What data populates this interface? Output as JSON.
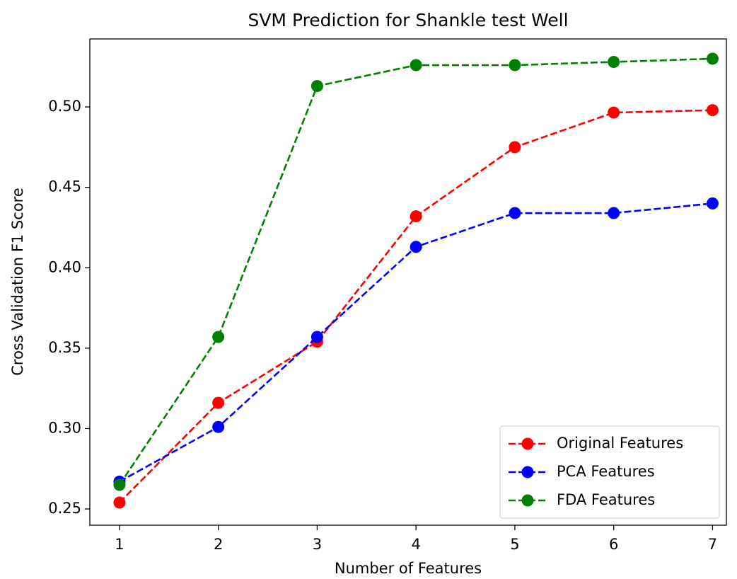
{
  "chart_data": {
    "type": "line",
    "title": "SVM Prediction for Shankle test Well",
    "xlabel": "Number of Features",
    "ylabel": "Cross Validation F1 Score",
    "x": [
      1,
      2,
      3,
      4,
      5,
      6,
      7
    ],
    "series": [
      {
        "name": "Original Features",
        "color": "#ff0000",
        "values": [
          0.254,
          0.316,
          0.354,
          0.432,
          0.475,
          0.4965,
          0.498
        ]
      },
      {
        "name": "PCA Features",
        "color": "#0000ff",
        "values": [
          0.267,
          0.301,
          0.357,
          0.413,
          0.434,
          0.434,
          0.44
        ]
      },
      {
        "name": "FDA Features",
        "color": "#008000",
        "values": [
          0.265,
          0.357,
          0.513,
          0.526,
          0.526,
          0.528,
          0.53
        ]
      }
    ],
    "xlim": [
      0.7,
      7.14
    ],
    "ylim": [
      0.2399,
      0.5423
    ],
    "xticks": [
      1,
      2,
      3,
      4,
      5,
      6,
      7
    ],
    "yticks": [
      0.25,
      {
        "value": 0.3,
        "label": "0.30"
      },
      0.35,
      {
        "value": 0.4,
        "label": "0.40"
      },
      0.45,
      {
        "value": 0.5,
        "label": "0.50"
      }
    ],
    "legend": "lower right",
    "grid": false
  }
}
